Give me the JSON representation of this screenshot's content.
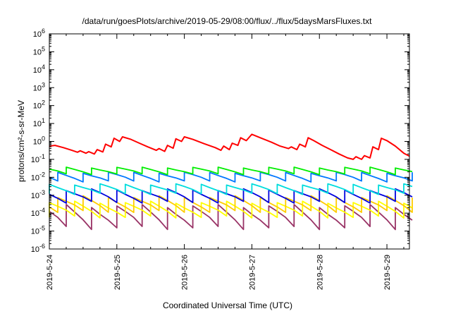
{
  "chart_data": {
    "type": "line",
    "title": "/data/run/goesPlots/archive/2019-05-29/08:00/flux/../flux/5daysMarsFluxes.txt",
    "xlabel": "Coordinated Universal Time (UTC)",
    "ylabel": "protons/cm²-s-sr-MeV",
    "y_scale": "log",
    "ylim": [
      1e-06,
      1000000
    ],
    "xlim": [
      "2019-05-24T00:00",
      "2019-05-29T08:00"
    ],
    "x_ticks": [
      "2019-5-24",
      "2019-5-25",
      "2019-5-26",
      "2019-5-27",
      "2019-5-28",
      "2019-5-29"
    ],
    "y_ticks": [
      "10-6",
      "10-5",
      "10-4",
      "10-3",
      "10-2",
      "10-1",
      "100",
      "101",
      "102",
      "103",
      "104",
      "105",
      "106"
    ],
    "grid": false,
    "legend": "none",
    "series": [
      {
        "color": "#ff0000",
        "points": [
          [
            "2019-05-24T00:00",
            0.55
          ],
          [
            "2019-05-24T02:00",
            0.6
          ],
          [
            "2019-05-24T05:00",
            0.45
          ],
          [
            "2019-05-24T08:00",
            0.32
          ],
          [
            "2019-05-24T10:00",
            0.25
          ],
          [
            "2019-05-24T11:00",
            0.3
          ],
          [
            "2019-05-24T13:00",
            0.22
          ],
          [
            "2019-05-24T14:00",
            0.27
          ],
          [
            "2019-05-24T16:00",
            0.2
          ],
          [
            "2019-05-24T17:00",
            0.35
          ],
          [
            "2019-05-24T19:00",
            0.26
          ],
          [
            "2019-05-24T20:00",
            0.7
          ],
          [
            "2019-05-24T22:00",
            0.5
          ],
          [
            "2019-05-24T23:00",
            1.5
          ],
          [
            "2019-05-25T01:00",
            1.0
          ],
          [
            "2019-05-25T02:00",
            1.8
          ],
          [
            "2019-05-25T05:00",
            1.3
          ],
          [
            "2019-05-25T08:00",
            0.8
          ],
          [
            "2019-05-25T11:00",
            0.5
          ],
          [
            "2019-05-25T14:00",
            0.32
          ],
          [
            "2019-05-25T15:00",
            0.4
          ],
          [
            "2019-05-25T17:00",
            0.28
          ],
          [
            "2019-05-25T18:00",
            0.6
          ],
          [
            "2019-05-25T20:00",
            0.42
          ],
          [
            "2019-05-25T21:00",
            1.4
          ],
          [
            "2019-05-25T23:00",
            1.0
          ],
          [
            "2019-05-26T00:00",
            1.8
          ],
          [
            "2019-05-26T03:00",
            1.3
          ],
          [
            "2019-05-26T07:00",
            0.75
          ],
          [
            "2019-05-26T11:00",
            0.45
          ],
          [
            "2019-05-26T13:00",
            0.32
          ],
          [
            "2019-05-26T14:00",
            0.55
          ],
          [
            "2019-05-26T16:00",
            0.35
          ],
          [
            "2019-05-26T17:00",
            0.8
          ],
          [
            "2019-05-26T19:00",
            0.6
          ],
          [
            "2019-05-26T20:00",
            1.6
          ],
          [
            "2019-05-26T22:00",
            1.1
          ],
          [
            "2019-05-27T00:00",
            2.5
          ],
          [
            "2019-05-27T03:00",
            1.6
          ],
          [
            "2019-05-27T07:00",
            0.9
          ],
          [
            "2019-05-27T10:00",
            0.55
          ],
          [
            "2019-05-27T13:00",
            0.4
          ],
          [
            "2019-05-27T14:00",
            0.5
          ],
          [
            "2019-05-27T16:00",
            0.35
          ],
          [
            "2019-05-27T17:00",
            0.7
          ],
          [
            "2019-05-27T19:00",
            0.5
          ],
          [
            "2019-05-27T20:00",
            1.6
          ],
          [
            "2019-05-27T22:00",
            1.1
          ],
          [
            "2019-05-28T01:00",
            0.6
          ],
          [
            "2019-05-28T04:00",
            0.35
          ],
          [
            "2019-05-28T07:00",
            0.2
          ],
          [
            "2019-05-28T10:00",
            0.12
          ],
          [
            "2019-05-28T12:00",
            0.1
          ],
          [
            "2019-05-28T13:00",
            0.14
          ],
          [
            "2019-05-28T15:00",
            0.1
          ],
          [
            "2019-05-28T16:00",
            0.16
          ],
          [
            "2019-05-28T18:00",
            0.12
          ],
          [
            "2019-05-28T19:00",
            0.5
          ],
          [
            "2019-05-28T21:00",
            0.35
          ],
          [
            "2019-05-28T22:00",
            1.5
          ],
          [
            "2019-05-29T00:00",
            1.1
          ],
          [
            "2019-05-29T03:00",
            0.55
          ],
          [
            "2019-05-29T06:00",
            0.22
          ],
          [
            "2019-05-29T08:00",
            0.15
          ]
        ]
      },
      {
        "color": "#00ee00",
        "baseline": 0.015,
        "peak": 0.035
      },
      {
        "color": "#0077ff",
        "baseline": 0.006,
        "peak": 0.018
      },
      {
        "color": "#00dddd",
        "baseline": 0.0012,
        "peak": 0.004
      },
      {
        "color": "#0000dd",
        "baseline": 0.0004,
        "peak": 0.002
      },
      {
        "color": "#ffcc00",
        "baseline": 0.00012,
        "peak": 0.0008
      },
      {
        "color": "#ffff00",
        "baseline": 6e-05,
        "peak": 0.0004
      },
      {
        "color": "#993366",
        "baseline": 1.5e-05,
        "peak": 0.00025
      }
    ]
  }
}
